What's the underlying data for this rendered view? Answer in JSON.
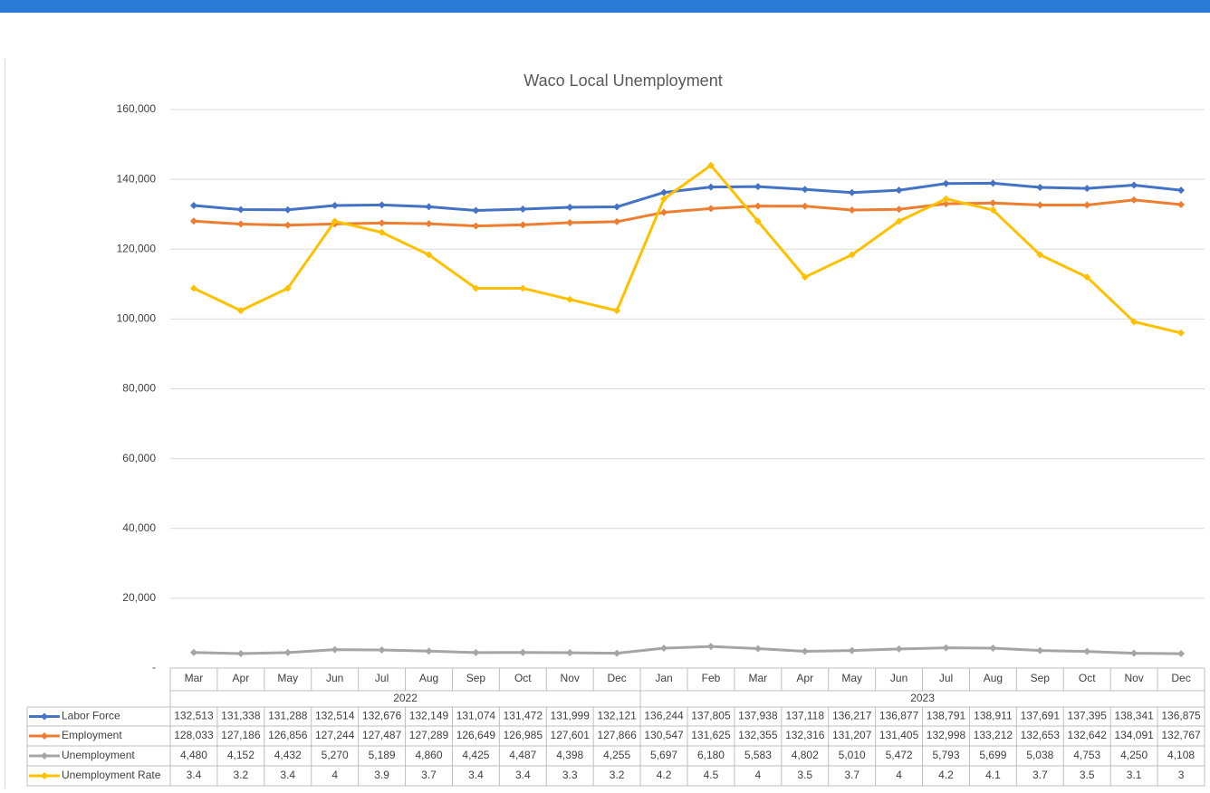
{
  "chart_data": {
    "type": "line",
    "title": "Waco Local Unemployment",
    "groups": [
      {
        "name": "2022",
        "categories": [
          "Mar",
          "Apr",
          "May",
          "Jun",
          "Jul",
          "Aug",
          "Sep",
          "Oct",
          "Nov",
          "Dec"
        ]
      },
      {
        "name": "2023",
        "categories": [
          "Jan",
          "Feb",
          "Mar",
          "Apr",
          "May",
          "Jun",
          "Jul",
          "Aug",
          "Sep",
          "Oct",
          "Nov",
          "Dec"
        ]
      }
    ],
    "ylim": [
      0,
      160000
    ],
    "yticks": [
      {
        "value": 0,
        "label": "-"
      },
      {
        "value": 20000,
        "label": "20,000"
      },
      {
        "value": 40000,
        "label": "40,000"
      },
      {
        "value": 60000,
        "label": "60,000"
      },
      {
        "value": 80000,
        "label": "80,000"
      },
      {
        "value": 100000,
        "label": "100,000"
      },
      {
        "value": 120000,
        "label": "120,000"
      },
      {
        "value": 140000,
        "label": "140,000"
      },
      {
        "value": 160000,
        "label": "160,000"
      }
    ],
    "y2lim": [
      0,
      5
    ],
    "grid": true,
    "series": [
      {
        "name": "Labor Force",
        "color": "#4472c4",
        "values": [
          132513,
          131338,
          131288,
          132514,
          132676,
          132149,
          131074,
          131472,
          131999,
          132121,
          136244,
          137805,
          137938,
          137118,
          136217,
          136877,
          138791,
          138911,
          137691,
          137395,
          138341,
          136875
        ],
        "value_labels": [
          "132,513",
          "131,338",
          "131,288",
          "132,514",
          "132,676",
          "132,149",
          "131,074",
          "131,472",
          "131,999",
          "132,121",
          "136,244",
          "137,805",
          "137,938",
          "137,118",
          "136,217",
          "136,877",
          "138,791",
          "138,911",
          "137,691",
          "137,395",
          "138,341",
          "136,875"
        ]
      },
      {
        "name": "Employment",
        "color": "#ed7d31",
        "values": [
          128033,
          127186,
          126856,
          127244,
          127487,
          127289,
          126649,
          126985,
          127601,
          127866,
          130547,
          131625,
          132355,
          132316,
          131207,
          131405,
          132998,
          133212,
          132653,
          132642,
          134091,
          132767
        ],
        "value_labels": [
          "128,033",
          "127,186",
          "126,856",
          "127,244",
          "127,487",
          "127,289",
          "126,649",
          "126,985",
          "127,601",
          "127,866",
          "130,547",
          "131,625",
          "132,355",
          "132,316",
          "131,207",
          "131,405",
          "132,998",
          "133,212",
          "132,653",
          "132,642",
          "134,091",
          "132,767"
        ]
      },
      {
        "name": "Unemployment",
        "color": "#a5a5a5",
        "values": [
          4480,
          4152,
          4432,
          5270,
          5189,
          4860,
          4425,
          4487,
          4398,
          4255,
          5697,
          6180,
          5583,
          4802,
          5010,
          5472,
          5793,
          5699,
          5038,
          4753,
          4250,
          4108
        ],
        "value_labels": [
          "4,480",
          "4,152",
          "4,432",
          "5,270",
          "5,189",
          "4,860",
          "4,425",
          "4,487",
          "4,398",
          "4,255",
          "5,697",
          "6,180",
          "5,583",
          "4,802",
          "5,010",
          "5,472",
          "5,793",
          "5,699",
          "5,038",
          "4,753",
          "4,250",
          "4,108"
        ]
      },
      {
        "name": "Unemployment Rate",
        "color": "#ffc000",
        "axis": "y2",
        "values": [
          3.4,
          3.2,
          3.4,
          4,
          3.9,
          3.7,
          3.4,
          3.4,
          3.3,
          3.2,
          4.2,
          4.5,
          4,
          3.5,
          3.7,
          4,
          4.2,
          4.1,
          3.7,
          3.5,
          3.1,
          3
        ]
      }
    ]
  }
}
